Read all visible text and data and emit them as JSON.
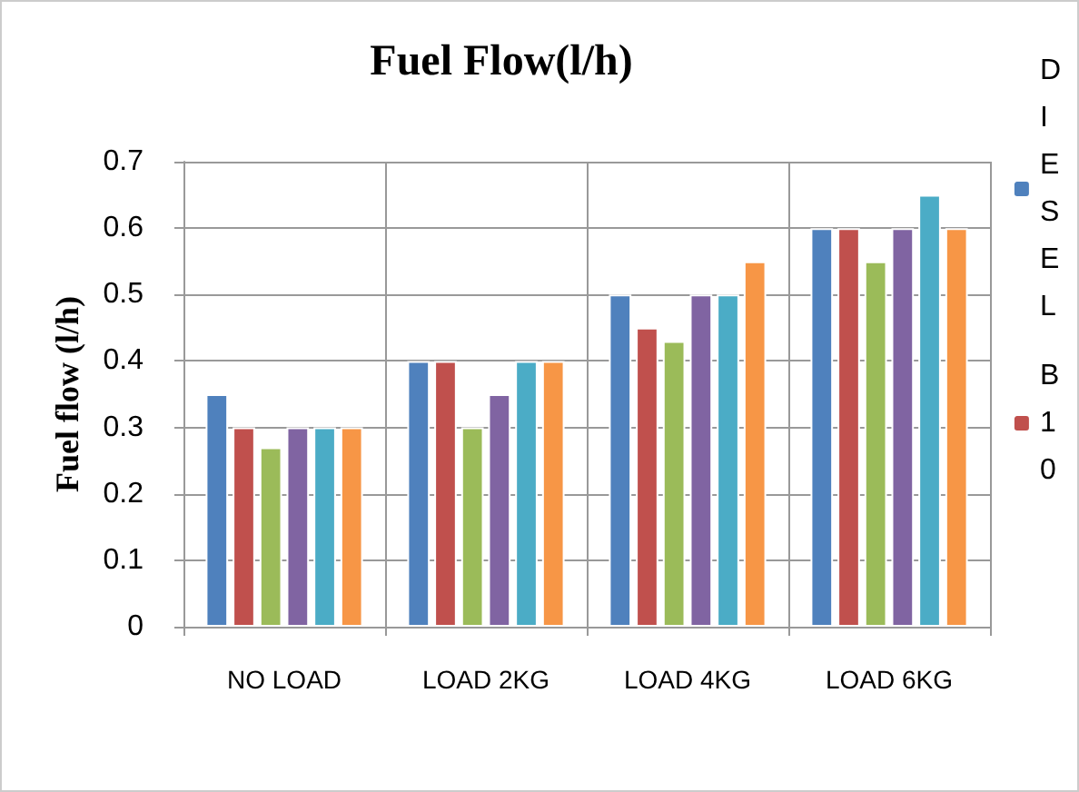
{
  "chart_data": {
    "type": "bar",
    "title": "Fuel Flow(l/h)",
    "ylabel": "Fuel flow (l/h)",
    "categories": [
      "NO LOAD",
      "LOAD 2KG",
      "LOAD 4KG",
      "LOAD 6KG"
    ],
    "series": [
      {
        "name": "DIESEL",
        "color": "#4f81bd",
        "values": [
          0.35,
          0.4,
          0.5,
          0.6
        ]
      },
      {
        "name": "B10",
        "color": "#c0504d",
        "values": [
          0.3,
          0.4,
          0.45,
          0.6
        ]
      },
      {
        "color": "#9bbb59",
        "values": [
          0.27,
          0.3,
          0.43,
          0.55
        ]
      },
      {
        "color": "#8064a2",
        "values": [
          0.3,
          0.35,
          0.5,
          0.6
        ]
      },
      {
        "color": "#4bacc6",
        "values": [
          0.3,
          0.4,
          0.5,
          0.65
        ]
      },
      {
        "color": "#f79646",
        "values": [
          0.3,
          0.4,
          0.55,
          0.6
        ]
      }
    ],
    "ylim": [
      0,
      0.7
    ],
    "yticks": [
      0,
      0.1,
      0.2,
      0.3,
      0.4,
      0.5,
      0.6,
      0.7
    ],
    "grid": true,
    "legend": "right"
  }
}
